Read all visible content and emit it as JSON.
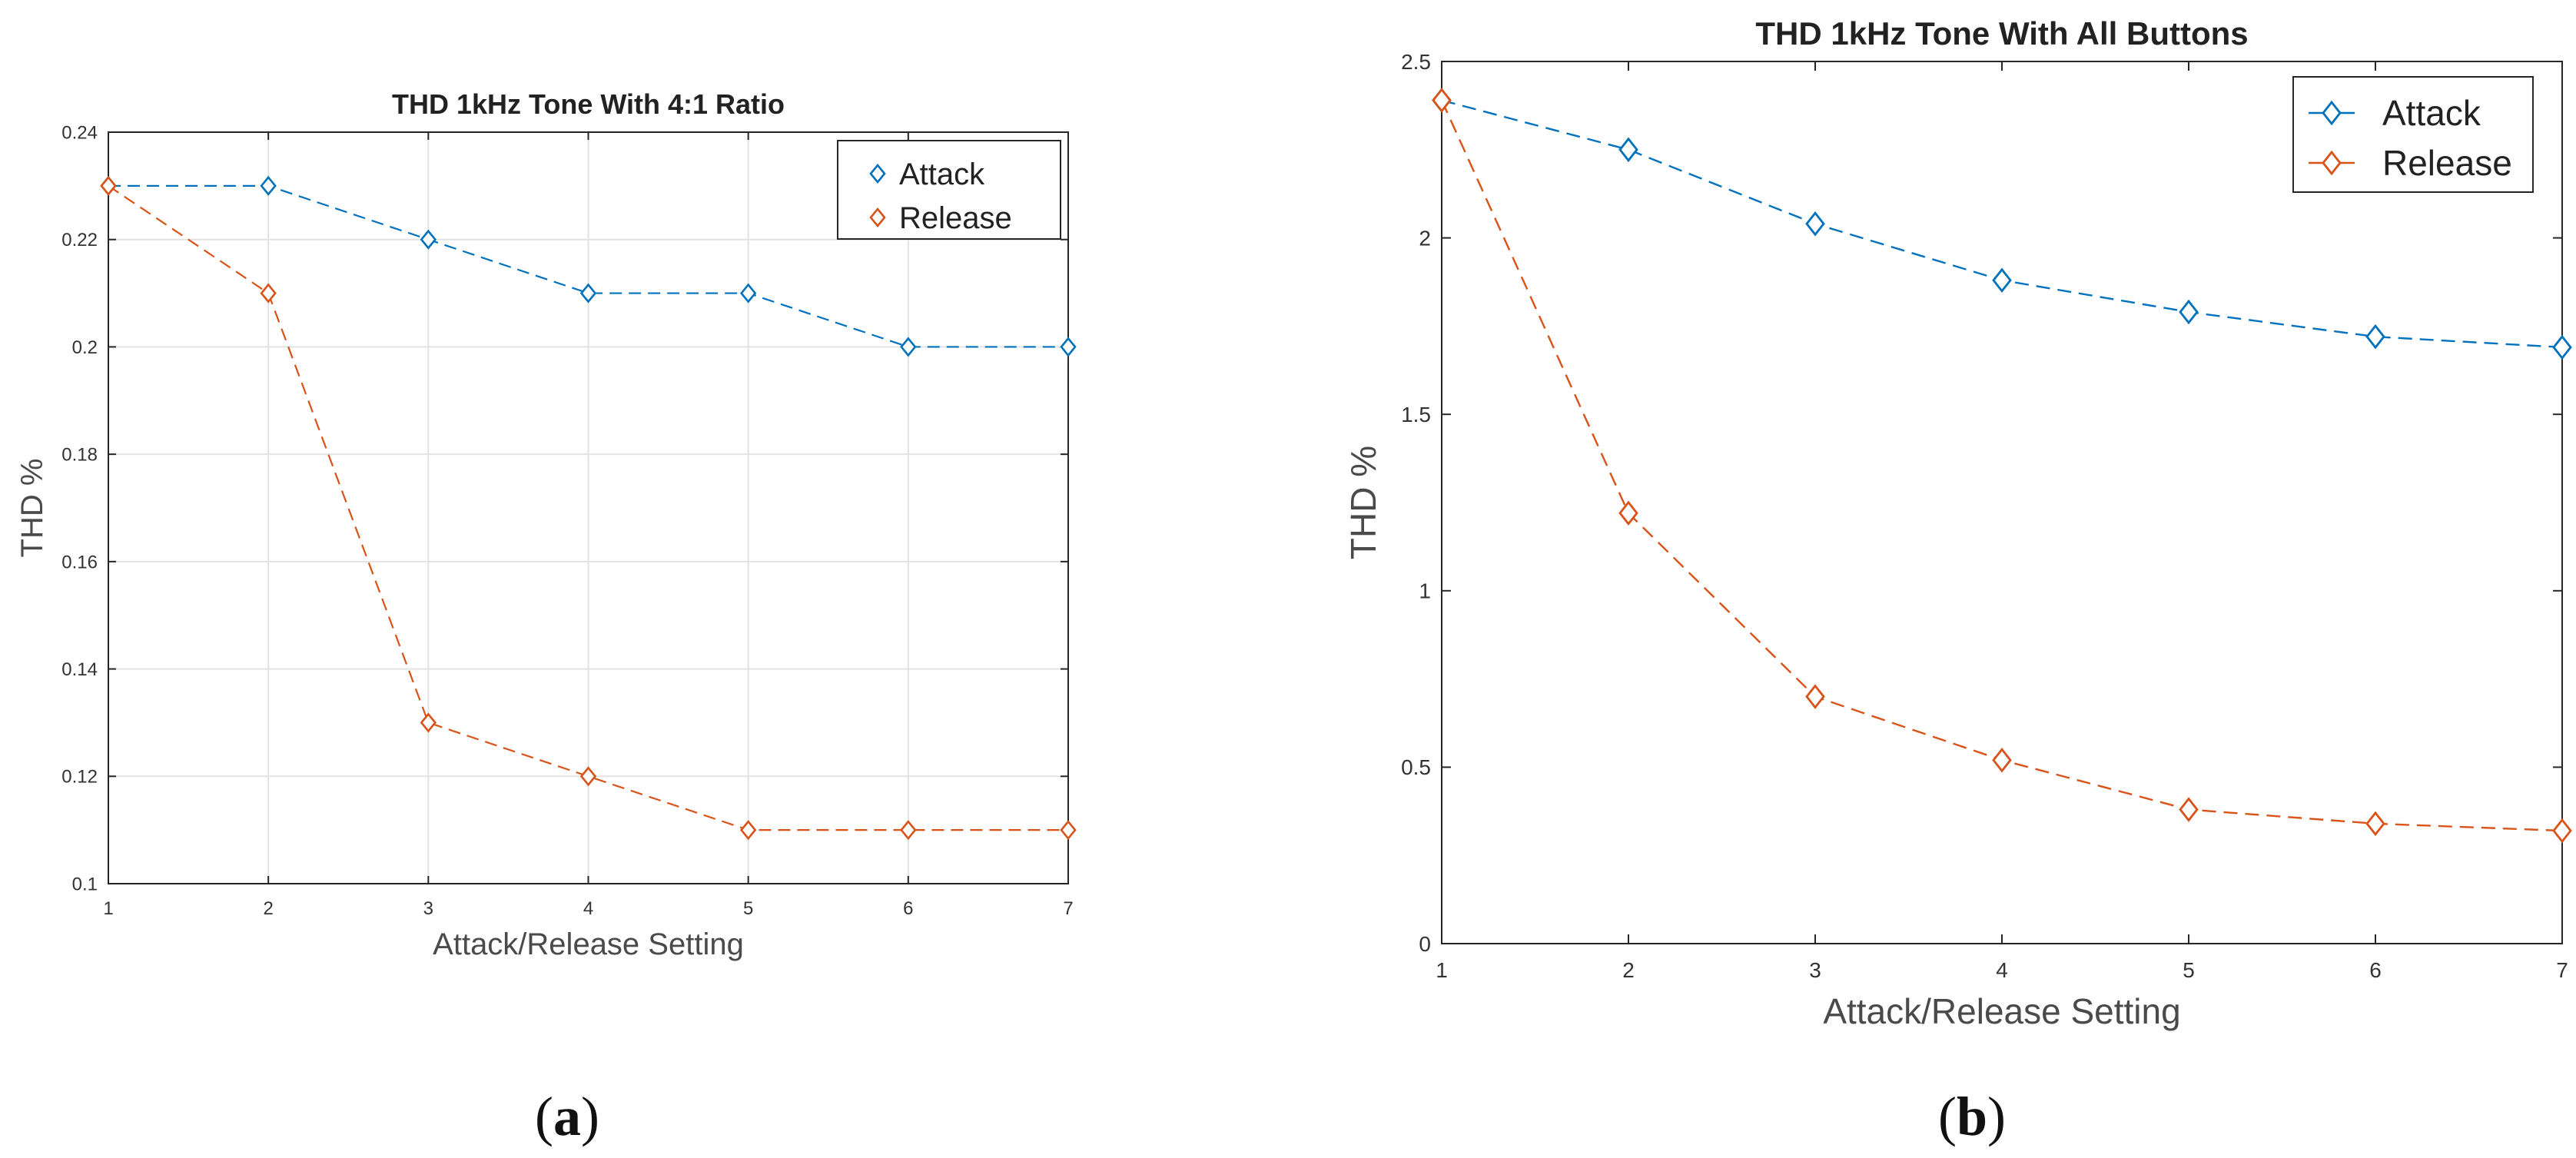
{
  "chart_data": [
    {
      "panel": "(a)",
      "caption_letter": "a",
      "type": "line",
      "title": "THD 1kHz Tone With 4:1 Ratio",
      "xlabel": "Attack/Release Setting",
      "ylabel": "THD %",
      "xlim": [
        1,
        7
      ],
      "ylim": [
        0.1,
        0.24
      ],
      "xticks": [
        1,
        2,
        3,
        4,
        5,
        6,
        7
      ],
      "xtick_labels": [
        "1",
        "2",
        "3",
        "4",
        "5",
        "6",
        "7"
      ],
      "yticks": [
        0.1,
        0.12,
        0.14,
        0.16,
        0.18,
        0.2,
        0.22,
        0.24
      ],
      "ytick_labels": [
        "0.1",
        "0.12",
        "0.14",
        "0.16",
        "0.18",
        "0.2",
        "0.22",
        "0.24"
      ],
      "grid": true,
      "legend_position": "top-right",
      "x": [
        1,
        2,
        3,
        4,
        5,
        6,
        7
      ],
      "series": [
        {
          "name": "Attack",
          "color": "#0072BD",
          "values": [
            0.23,
            0.23,
            0.22,
            0.21,
            0.21,
            0.2,
            0.2
          ]
        },
        {
          "name": "Release",
          "color": "#D95319",
          "values": [
            0.23,
            0.21,
            0.13,
            0.12,
            0.11,
            0.11,
            0.11
          ]
        }
      ]
    },
    {
      "panel": "(b)",
      "caption_letter": "b",
      "type": "line",
      "title": "THD 1kHz Tone With All Buttons",
      "xlabel": "Attack/Release Setting",
      "ylabel": "THD %",
      "xlim": [
        1,
        7
      ],
      "ylim": [
        0,
        2.5
      ],
      "xticks": [
        1,
        2,
        3,
        4,
        5,
        6,
        7
      ],
      "xtick_labels": [
        "1",
        "2",
        "3",
        "4",
        "5",
        "6",
        "7"
      ],
      "yticks": [
        0,
        0.5,
        1,
        1.5,
        2,
        2.5
      ],
      "ytick_labels": [
        "0",
        "0.5",
        "1",
        "1.5",
        "2",
        "2.5"
      ],
      "grid": false,
      "legend_position": "top-right",
      "x": [
        1,
        2,
        3,
        4,
        5,
        6,
        7
      ],
      "series": [
        {
          "name": "Attack",
          "color": "#0072BD",
          "values": [
            2.39,
            2.25,
            2.04,
            1.88,
            1.79,
            1.72,
            1.69
          ]
        },
        {
          "name": "Release",
          "color": "#D95319",
          "values": [
            2.39,
            1.22,
            0.7,
            0.52,
            0.38,
            0.34,
            0.32
          ]
        }
      ]
    }
  ]
}
